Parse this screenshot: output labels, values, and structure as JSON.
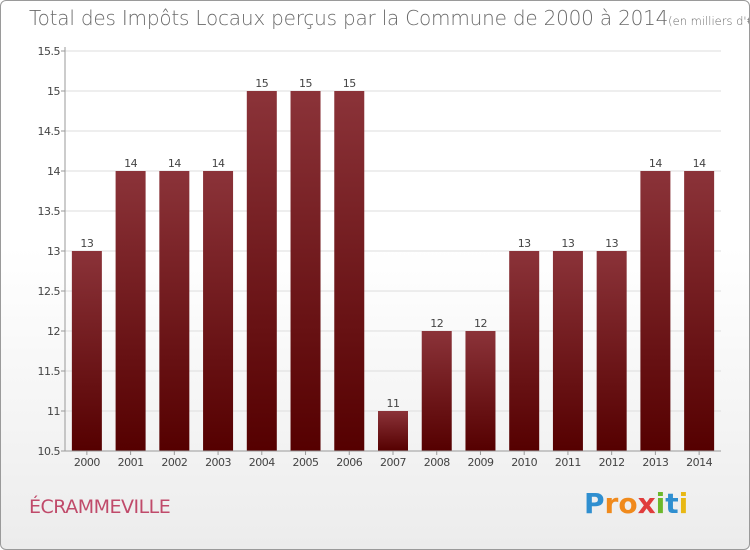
{
  "title": {
    "main": "Total des Impôts Locaux perçus par la Commune de 2000 à 2014",
    "unit": "(en milliers d'€)"
  },
  "commune": "ÉCRAMMEVILLE",
  "logo": {
    "letters": [
      "P",
      "r",
      "o",
      "x",
      "i",
      "t",
      "i"
    ],
    "colors": [
      "#2f8fd0",
      "#f08a1c",
      "#f08a1c",
      "#e03c3c",
      "#6cb82c",
      "#2f8fd0",
      "#e8b814"
    ]
  },
  "colors": {
    "bar_top": "#8b3339",
    "bar_bottom": "#550000",
    "axis": "#999999",
    "grid": "#dddddd",
    "text": "#444444"
  },
  "chart_data": {
    "type": "bar",
    "title": "Total des Impôts Locaux perçus par la Commune de 2000 à 2014",
    "xlabel": "",
    "ylabel": "",
    "ylim": [
      10.5,
      15.5
    ],
    "grid": true,
    "legend": "none",
    "yticks": [
      10.5,
      11,
      11.5,
      12,
      12.5,
      13,
      13.5,
      14,
      14.5,
      15,
      15.5
    ],
    "ytick_labels": [
      "10.5",
      "11",
      "11.5",
      "12",
      "12.5",
      "13",
      "13.5",
      "14",
      "14.5",
      "15",
      "15.5"
    ],
    "categories": [
      "2000",
      "2001",
      "2002",
      "2003",
      "2004",
      "2005",
      "2006",
      "2007",
      "2008",
      "2009",
      "2010",
      "2011",
      "2012",
      "2013",
      "2014"
    ],
    "values": [
      13,
      14,
      14,
      14,
      15,
      15,
      15,
      11,
      12,
      12,
      13,
      13,
      13,
      14,
      14
    ],
    "value_labels": [
      "13",
      "14",
      "14",
      "14",
      "15",
      "15",
      "15",
      "11",
      "12",
      "12",
      "13",
      "13",
      "13",
      "14",
      "14"
    ]
  }
}
